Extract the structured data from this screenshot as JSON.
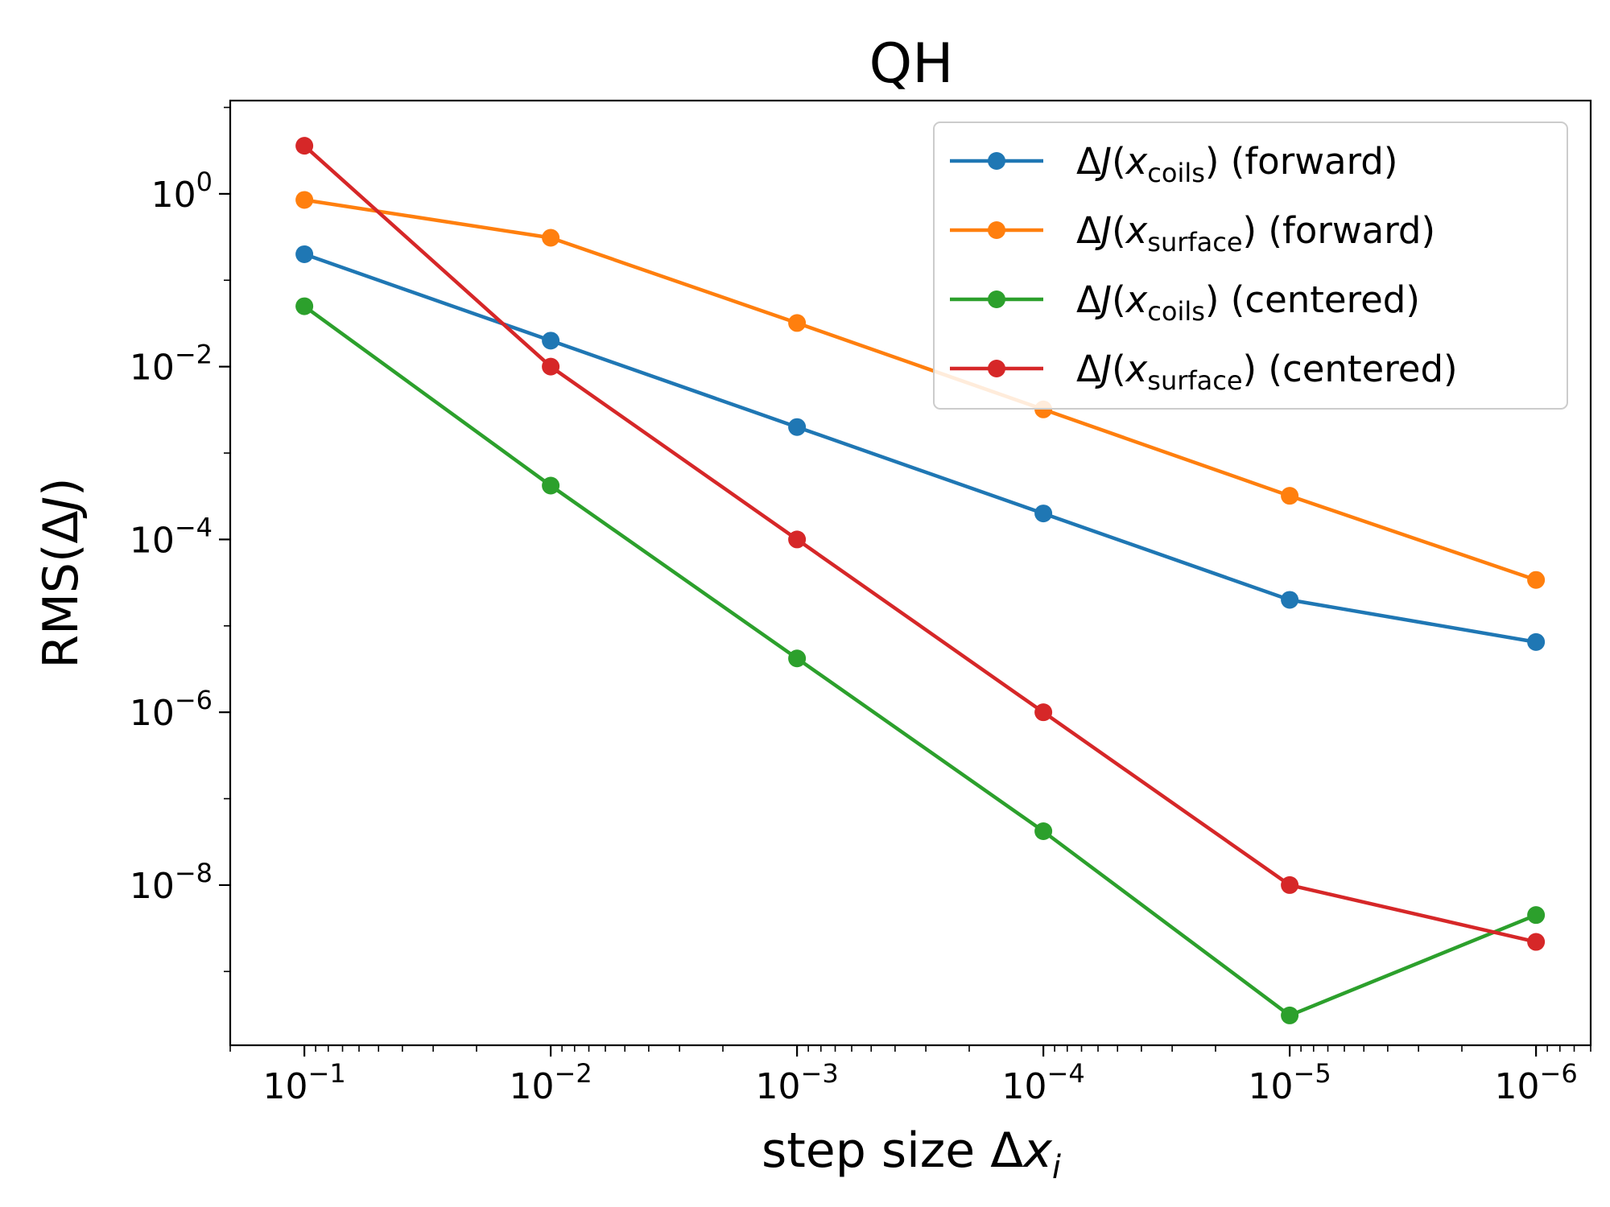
{
  "chart_data": {
    "type": "line",
    "title": "QH",
    "xlabel": {
      "main": "step size Δ",
      "var": "x",
      "sub": "i"
    },
    "ylabel": {
      "pre": "RMS(Δ",
      "var": "J",
      "post": ")"
    },
    "x_scale": "log",
    "x_reversed": true,
    "y_scale": "log",
    "xlim": [
      0.2,
      6e-07
    ],
    "ylim": [
      1.4e-10,
      12
    ],
    "x_ticks": [
      {
        "value": 0.1,
        "base": "10",
        "exp": "−1"
      },
      {
        "value": 0.01,
        "base": "10",
        "exp": "−2"
      },
      {
        "value": 0.001,
        "base": "10",
        "exp": "−3"
      },
      {
        "value": 0.0001,
        "base": "10",
        "exp": "−4"
      },
      {
        "value": 1e-05,
        "base": "10",
        "exp": "−5"
      },
      {
        "value": 1e-06,
        "base": "10",
        "exp": "−6"
      }
    ],
    "y_ticks": [
      {
        "value": 1,
        "base": "10",
        "exp": "0"
      },
      {
        "value": 0.01,
        "base": "10",
        "exp": "−2"
      },
      {
        "value": 0.0001,
        "base": "10",
        "exp": "−4"
      },
      {
        "value": 1e-06,
        "base": "10",
        "exp": "−6"
      },
      {
        "value": 1e-08,
        "base": "10",
        "exp": "−8"
      }
    ],
    "x": [
      0.1,
      0.01,
      0.001,
      0.0001,
      1e-05,
      1e-06
    ],
    "series": [
      {
        "name": "ΔJ(x_coils) (forward)",
        "legend": {
          "pre": "Δ",
          "var1": "J",
          "open": "(",
          "var2": "x",
          "sub": "coils",
          "post": ") (forward)"
        },
        "color": "#1f77b4",
        "values": [
          0.2,
          0.02,
          0.002,
          0.0002,
          2e-05,
          6.5e-06
        ]
      },
      {
        "name": "ΔJ(x_surface) (forward)",
        "legend": {
          "pre": "Δ",
          "var1": "J",
          "open": "(",
          "var2": "x",
          "sub": "surface",
          "post": ") (forward)"
        },
        "color": "#ff7f0e",
        "values": [
          0.85,
          0.31,
          0.032,
          0.0032,
          0.00032,
          3.4e-05
        ]
      },
      {
        "name": "ΔJ(x_coils) (centered)",
        "legend": {
          "pre": "Δ",
          "var1": "J",
          "open": "(",
          "var2": "x",
          "sub": "coils",
          "post": ") (centered)"
        },
        "color": "#2ca02c",
        "values": [
          0.05,
          0.00042,
          4.2e-06,
          4.2e-08,
          3.1e-10,
          4.5e-09
        ]
      },
      {
        "name": "ΔJ(x_surface) (centered)",
        "legend": {
          "pre": "Δ",
          "var1": "J",
          "open": "(",
          "var2": "x",
          "sub": "surface",
          "post": ") (centered)"
        },
        "color": "#d62728",
        "values": [
          3.6,
          0.01,
          0.0001,
          1e-06,
          1e-08,
          2.2e-09
        ]
      }
    ],
    "grid": false,
    "legend_position": "top-right"
  }
}
